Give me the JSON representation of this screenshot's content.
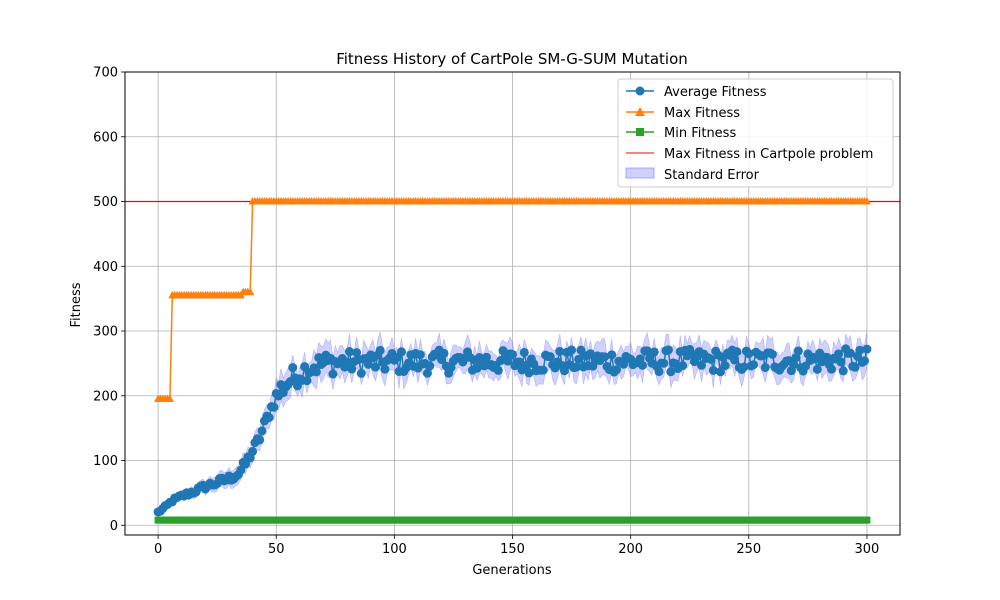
{
  "chart_data": {
    "type": "line",
    "title": "Fitness History of CartPole SM-G-SUM Mutation",
    "xlabel": "Generations",
    "ylabel": "Fitness",
    "xlim": [
      -14,
      314
    ],
    "ylim": [
      -15,
      700
    ],
    "xticks": [
      0,
      50,
      100,
      150,
      200,
      250,
      300
    ],
    "yticks": [
      0,
      100,
      200,
      300,
      400,
      500,
      600,
      700
    ],
    "grid": true,
    "legend_position": "top-right",
    "colors": {
      "average": "#1f77b4",
      "max": "#ff7f0e",
      "min": "#2ca02c",
      "limit": "#ff0000",
      "stderr": "#7b7bff"
    },
    "series": [
      {
        "name": "Average Fitness",
        "marker": "circle",
        "anchors": [
          [
            0,
            20
          ],
          [
            3,
            28
          ],
          [
            6,
            38
          ],
          [
            10,
            45
          ],
          [
            15,
            52
          ],
          [
            20,
            60
          ],
          [
            25,
            66
          ],
          [
            30,
            72
          ],
          [
            34,
            80
          ],
          [
            37,
            95
          ],
          [
            40,
            115
          ],
          [
            43,
            135
          ],
          [
            46,
            165
          ],
          [
            49,
            190
          ],
          [
            52,
            210
          ],
          [
            56,
            225
          ],
          [
            60,
            235
          ],
          [
            65,
            245
          ],
          [
            70,
            250
          ],
          [
            80,
            252
          ],
          [
            300,
            255
          ]
        ],
        "noise_amplitude": 18
      },
      {
        "name": "Max Fitness",
        "marker": "triangle",
        "steps": [
          [
            0,
            5,
            195
          ],
          [
            6,
            35,
            355
          ],
          [
            36,
            39,
            360
          ],
          [
            40,
            300,
            500
          ]
        ]
      },
      {
        "name": "Min Fitness",
        "marker": "square",
        "constant": 8
      },
      {
        "name": "Max Fitness in Cartpole problem",
        "type": "hline",
        "value": 500
      },
      {
        "name": "Standard Error",
        "type": "band",
        "band_half_width": 22
      }
    ]
  }
}
